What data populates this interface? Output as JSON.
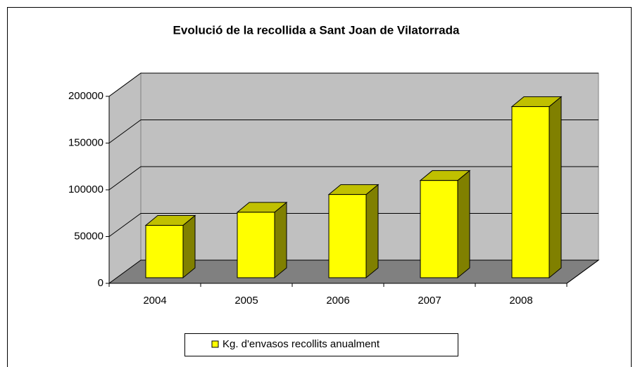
{
  "chart_data": {
    "type": "bar3d",
    "title": "Evolució de la recollida a Sant Joan de Vilatorrada",
    "categories": [
      "2004",
      "2005",
      "2006",
      "2007",
      "2008"
    ],
    "series": [
      {
        "name": "Kg. d'envasos recollits anualment",
        "color": "#ffff00",
        "values": [
          56000,
          70000,
          89000,
          104000,
          183000
        ]
      }
    ],
    "ylim": [
      0,
      200000
    ],
    "yticks": [
      0,
      50000,
      100000,
      150000,
      200000
    ],
    "grid": true,
    "legend": "bottom"
  }
}
